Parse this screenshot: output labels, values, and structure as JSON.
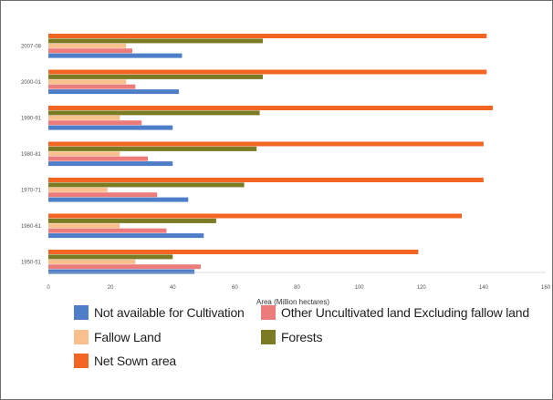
{
  "chart_data": {
    "type": "bar",
    "orientation": "horizontal",
    "title": "",
    "xlabel": "Area (Million hectares)",
    "ylabel": "",
    "xlim": [
      0,
      160
    ],
    "x_ticks": [
      0,
      20,
      40,
      60,
      80,
      100,
      120,
      140,
      160
    ],
    "categories": [
      "1950-51",
      "1960-61",
      "1970-71",
      "1980-81",
      "1990-91",
      "2000-01",
      "2007-08"
    ],
    "series": [
      {
        "name": "Not available for Cultivation",
        "color": "#4e7ec8",
        "values": [
          47,
          50,
          45,
          40,
          40,
          42,
          43
        ]
      },
      {
        "name": "Other Uncultivated land Excluding fallow land",
        "color": "#ec7c7c",
        "values": [
          49,
          38,
          35,
          32,
          30,
          28,
          27
        ]
      },
      {
        "name": "Fallow Land",
        "color": "#f9c08e",
        "values": [
          28,
          23,
          19,
          23,
          23,
          25,
          25
        ]
      },
      {
        "name": "Forests",
        "color": "#7b7b23",
        "values": [
          40,
          54,
          63,
          67,
          68,
          69,
          69
        ]
      },
      {
        "name": "Net Sown area",
        "color": "#f26522",
        "values": [
          119,
          133,
          140,
          140,
          143,
          141,
          141
        ]
      }
    ],
    "grid": false,
    "legend_position": "bottom"
  }
}
